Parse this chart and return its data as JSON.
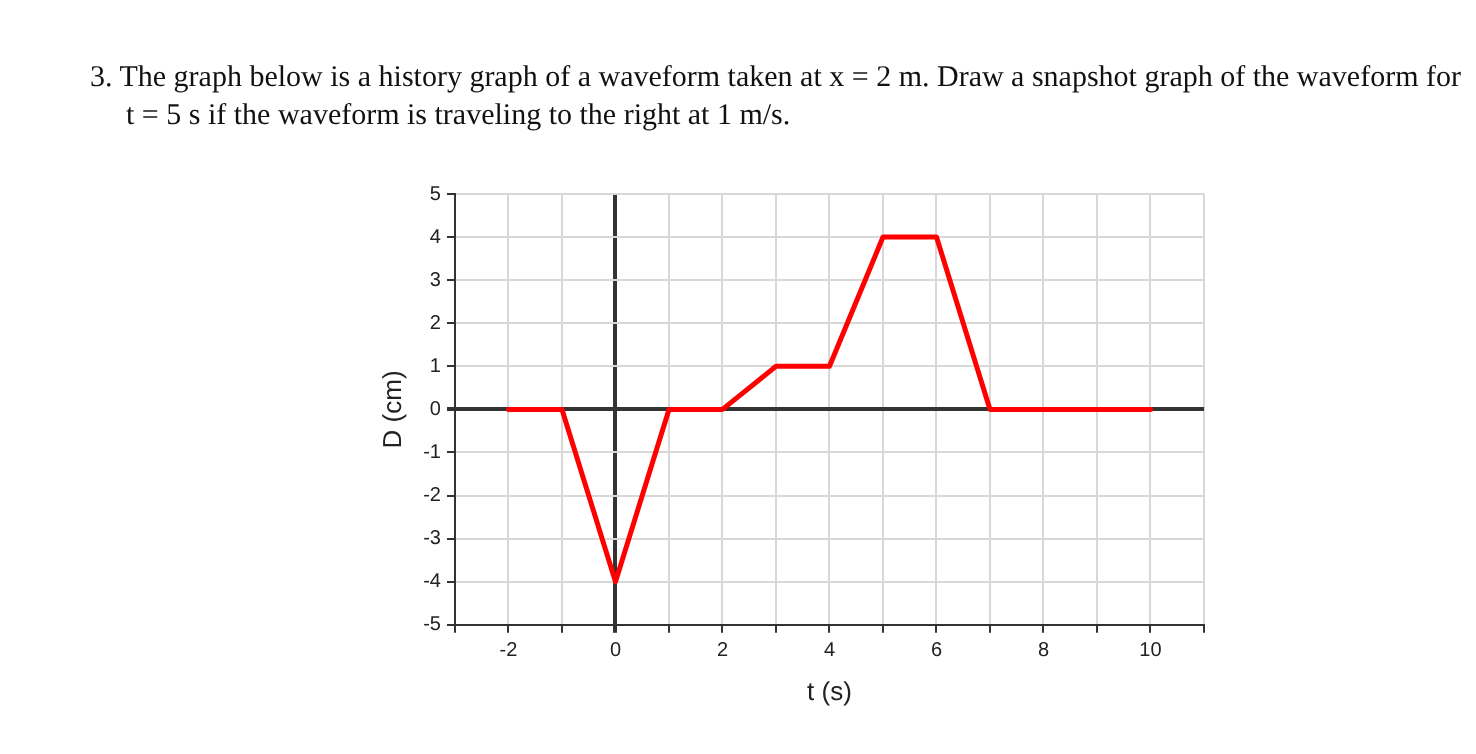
{
  "chart_data": {
    "type": "line",
    "title": "3. The graph below is a history graph of a waveform taken at x = 2 m. Draw a snapshot graph of the waveform for t = 5 s if the waveform is traveling to the right at 1 m/s.",
    "xlabel": "t (s)",
    "ylabel": "D (cm)",
    "series": [
      {
        "color": "#ff0000",
        "x": [
          -2,
          -1,
          0,
          1,
          2,
          3,
          4,
          5,
          6,
          7,
          10
        ],
        "values": [
          0,
          0,
          -4,
          0,
          0,
          1,
          1,
          4,
          4,
          0,
          0
        ]
      }
    ],
    "xlim": [
      -3,
      11
    ],
    "xticks": [
      {
        "value": -3,
        "label": null
      },
      -2,
      {
        "value": -1,
        "label": null
      },
      0,
      {
        "value": 1,
        "label": null
      },
      2,
      {
        "value": 3,
        "label": null
      },
      4,
      {
        "value": 5,
        "label": null
      },
      6,
      {
        "value": 7,
        "label": null
      },
      8,
      {
        "value": 9,
        "label": null
      },
      10,
      {
        "value": 11,
        "label": null
      }
    ],
    "ylim": [
      -5,
      5
    ],
    "yticks": [
      -5,
      -4,
      -3,
      -2,
      -1,
      0,
      1,
      2,
      3,
      4,
      5
    ],
    "grid": true,
    "legend": false,
    "marker": "none",
    "line_style": "solid"
  }
}
